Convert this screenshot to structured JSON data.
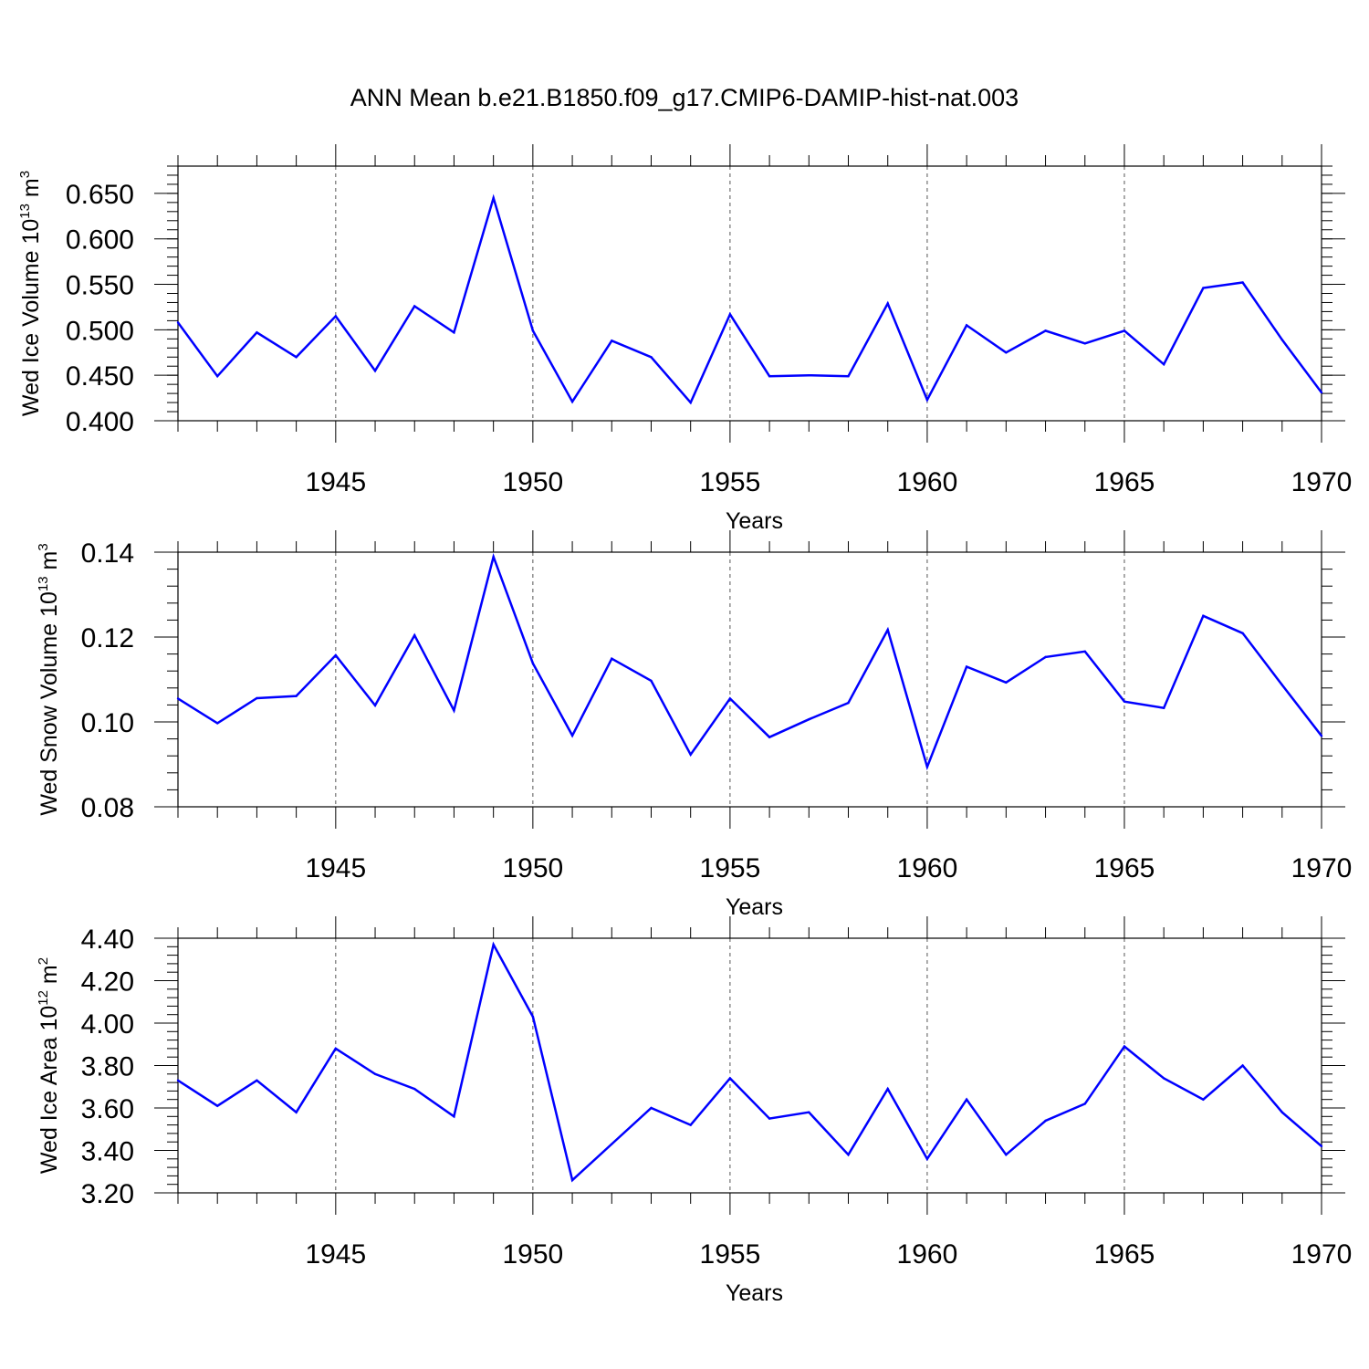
{
  "title": "ANN Mean b.e21.B1850.f09_g17.CMIP6-DAMIP-hist-nat.003",
  "colors": {
    "line": "#0000ff",
    "axis": "#000000",
    "grid": "#555555"
  },
  "chart_data": [
    {
      "type": "line",
      "ylabel_main": "Wed Ice Volume 10",
      "ylabel_exp": "13",
      "ylabel_unit": "m",
      "ylabel_unit_exp": "3",
      "xlabel": "Years",
      "xlim": [
        1941,
        1970
      ],
      "ylim": [
        0.4,
        0.68
      ],
      "x_ticks": [
        1945,
        1950,
        1955,
        1960,
        1965,
        1970
      ],
      "x_tick_labels": [
        "1945",
        "1950",
        "1955",
        "1960",
        "1965",
        "1970"
      ],
      "y_ticks": [
        0.4,
        0.45,
        0.5,
        0.55,
        0.6,
        0.65
      ],
      "y_tick_labels": [
        "0.400",
        "0.450",
        "0.500",
        "0.550",
        "0.600",
        "0.650"
      ],
      "y_minor_step": 0.01,
      "grid": "x-dashed",
      "x": [
        1941,
        1942,
        1943,
        1944,
        1945,
        1946,
        1947,
        1948,
        1949,
        1950,
        1951,
        1952,
        1953,
        1954,
        1955,
        1956,
        1957,
        1958,
        1959,
        1960,
        1961,
        1962,
        1963,
        1964,
        1965,
        1966,
        1967,
        1968,
        1969,
        1970
      ],
      "values": [
        0.508,
        0.449,
        0.497,
        0.47,
        0.515,
        0.455,
        0.526,
        0.497,
        0.645,
        0.499,
        0.421,
        0.488,
        0.47,
        0.42,
        0.517,
        0.449,
        0.45,
        0.449,
        0.529,
        0.423,
        0.505,
        0.475,
        0.499,
        0.485,
        0.499,
        0.462,
        0.546,
        0.552,
        0.489,
        0.431
      ]
    },
    {
      "type": "line",
      "ylabel_main": "Wed Snow Volume 10",
      "ylabel_exp": "13",
      "ylabel_unit": "m",
      "ylabel_unit_exp": "3",
      "xlabel": "Years",
      "xlim": [
        1941,
        1970
      ],
      "ylim": [
        0.08,
        0.14
      ],
      "x_ticks": [
        1945,
        1950,
        1955,
        1960,
        1965,
        1970
      ],
      "x_tick_labels": [
        "1945",
        "1950",
        "1955",
        "1960",
        "1965",
        "1970"
      ],
      "y_ticks": [
        0.08,
        0.1,
        0.12,
        0.14
      ],
      "y_tick_labels": [
        "0.08",
        "0.10",
        "0.12",
        "0.14"
      ],
      "y_minor_step": 0.004,
      "grid": "x-dashed",
      "x": [
        1941,
        1942,
        1943,
        1944,
        1945,
        1946,
        1947,
        1948,
        1949,
        1950,
        1951,
        1952,
        1953,
        1954,
        1955,
        1956,
        1957,
        1958,
        1959,
        1960,
        1961,
        1962,
        1963,
        1964,
        1965,
        1966,
        1967,
        1968,
        1969,
        1970
      ],
      "values": [
        0.1055,
        0.0997,
        0.1056,
        0.1061,
        0.1157,
        0.1039,
        0.1204,
        0.1027,
        0.1389,
        0.1138,
        0.0968,
        0.1149,
        0.1097,
        0.0923,
        0.1055,
        0.0964,
        0.1006,
        0.1045,
        0.1217,
        0.0894,
        0.113,
        0.1093,
        0.1153,
        0.1166,
        0.1048,
        0.1033,
        0.125,
        0.1209,
        0.1087,
        0.0967
      ]
    },
    {
      "type": "line",
      "ylabel_main": "Wed Ice Area 10",
      "ylabel_exp": "12",
      "ylabel_unit": "m",
      "ylabel_unit_exp": "2",
      "xlabel": "Years",
      "xlim": [
        1941,
        1970
      ],
      "ylim": [
        3.2,
        4.4
      ],
      "x_ticks": [
        1945,
        1950,
        1955,
        1960,
        1965,
        1970
      ],
      "x_tick_labels": [
        "1945",
        "1950",
        "1955",
        "1960",
        "1965",
        "1970"
      ],
      "y_ticks": [
        3.2,
        3.4,
        3.6,
        3.8,
        4.0,
        4.2,
        4.4
      ],
      "y_tick_labels": [
        "3.20",
        "3.40",
        "3.60",
        "3.80",
        "4.00",
        "4.20",
        "4.40"
      ],
      "y_minor_step": 0.04,
      "grid": "x-dashed",
      "x": [
        1941,
        1942,
        1943,
        1944,
        1945,
        1946,
        1947,
        1948,
        1949,
        1950,
        1951,
        1952,
        1953,
        1954,
        1955,
        1956,
        1957,
        1958,
        1959,
        1960,
        1961,
        1962,
        1963,
        1964,
        1965,
        1966,
        1967,
        1968,
        1969,
        1970
      ],
      "values": [
        3.73,
        3.61,
        3.73,
        3.58,
        3.88,
        3.76,
        3.69,
        3.56,
        4.37,
        4.03,
        3.26,
        3.43,
        3.6,
        3.52,
        3.74,
        3.55,
        3.58,
        3.38,
        3.69,
        3.36,
        3.64,
        3.38,
        3.54,
        3.62,
        3.89,
        3.74,
        3.64,
        3.8,
        3.58,
        3.42
      ]
    }
  ]
}
